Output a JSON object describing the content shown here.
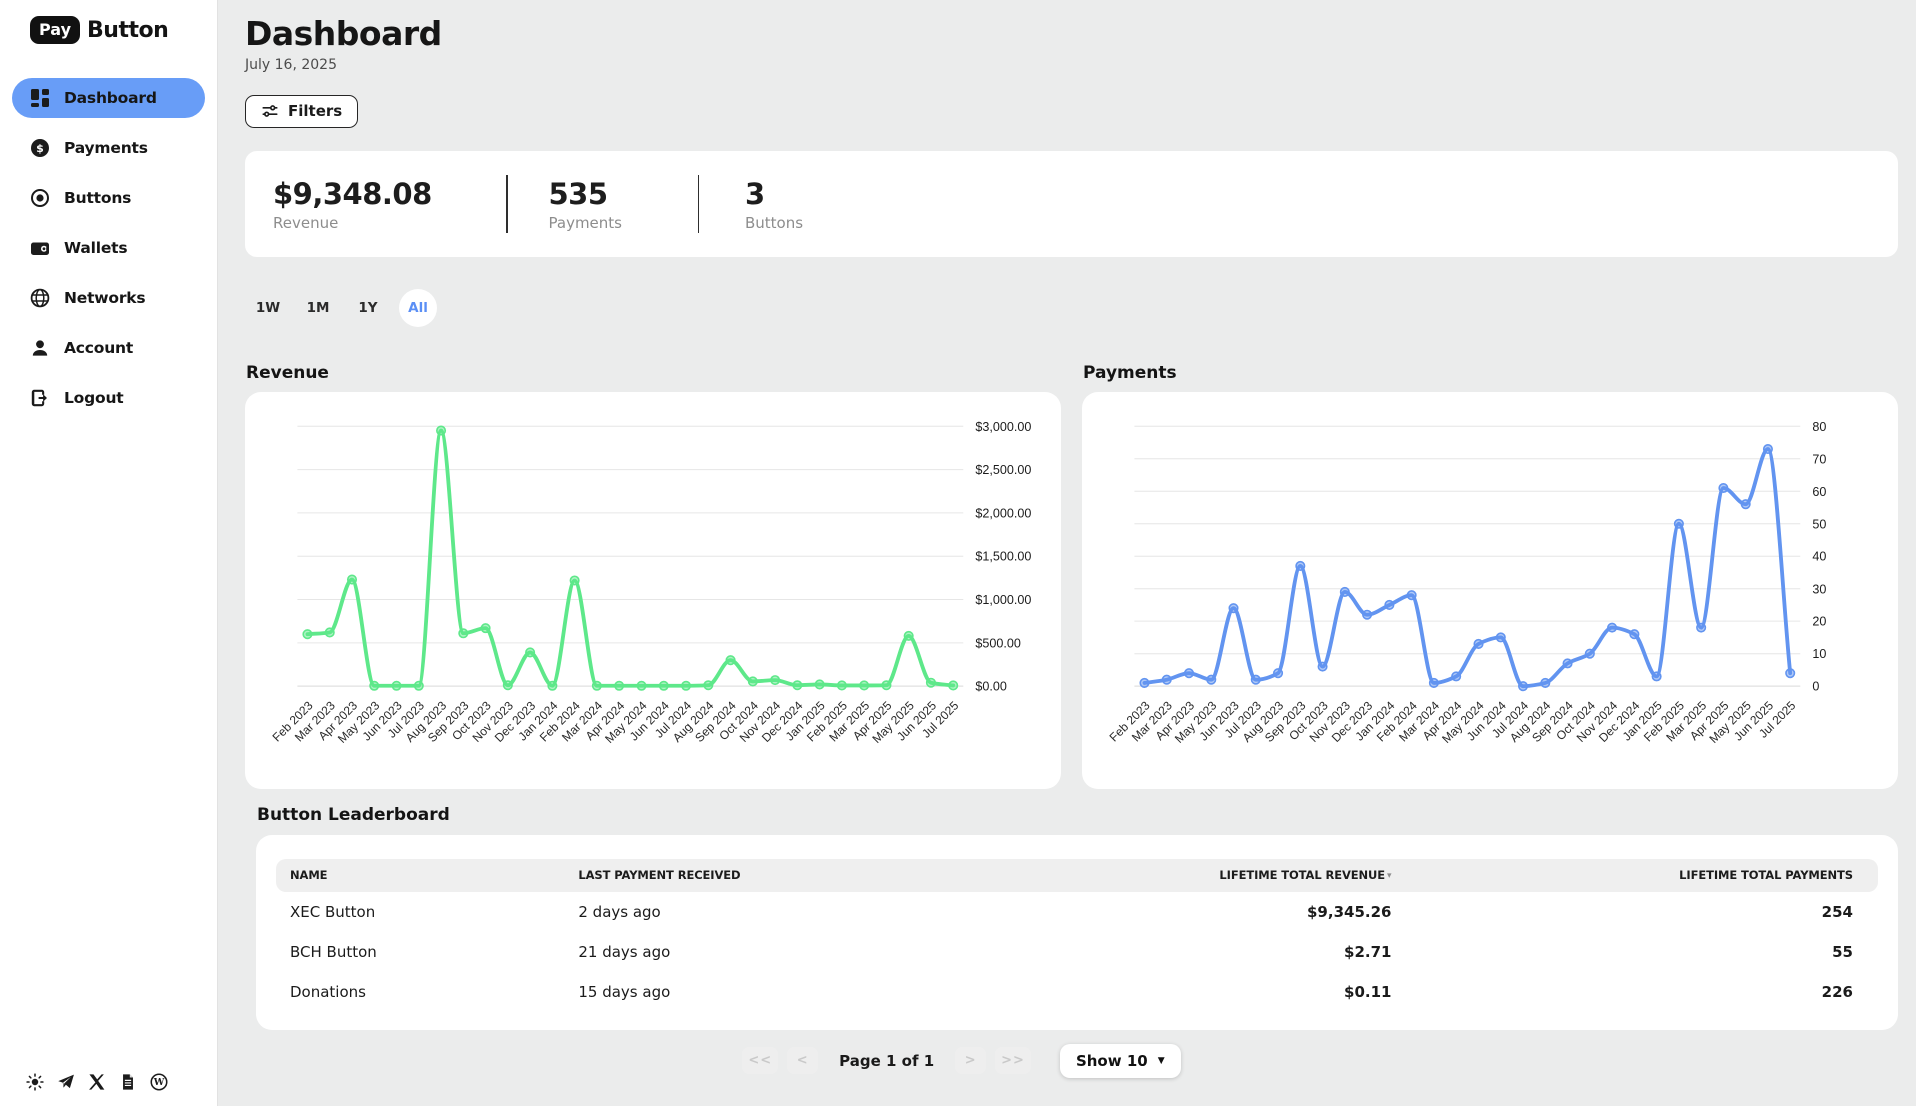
{
  "brand": {
    "pay": "Pay",
    "button": "Button"
  },
  "sidebar": {
    "items": [
      {
        "label": "Dashboard",
        "icon": "grid-icon",
        "active": true
      },
      {
        "label": "Payments",
        "icon": "dollar-icon",
        "active": false
      },
      {
        "label": "Buttons",
        "icon": "target-icon",
        "active": false
      },
      {
        "label": "Wallets",
        "icon": "wallet-icon",
        "active": false
      },
      {
        "label": "Networks",
        "icon": "globe-icon",
        "active": false
      },
      {
        "label": "Account",
        "icon": "person-icon",
        "active": false
      },
      {
        "label": "Logout",
        "icon": "logout-icon",
        "active": false
      }
    ],
    "footer_icons": [
      "theme-sun-icon",
      "telegram-icon",
      "x-icon",
      "document-icon",
      "wordpress-icon"
    ]
  },
  "header": {
    "title": "Dashboard",
    "date": "July 16, 2025",
    "filters_label": "Filters"
  },
  "stats": [
    {
      "value": "$9,348.08",
      "label": "Revenue"
    },
    {
      "value": "535",
      "label": "Payments"
    },
    {
      "value": "3",
      "label": "Buttons"
    }
  ],
  "range_buttons": [
    {
      "label": "1W",
      "active": false
    },
    {
      "label": "1M",
      "active": false
    },
    {
      "label": "1Y",
      "active": false
    },
    {
      "label": "All",
      "active": true
    }
  ],
  "chart_data": [
    {
      "type": "line",
      "title": "Revenue",
      "categories": [
        "Feb 2023",
        "Mar 2023",
        "Apr 2023",
        "May 2023",
        "Jun 2023",
        "Jul 2023",
        "Aug 2023",
        "Sep 2023",
        "Oct 2023",
        "Nov 2023",
        "Dec 2023",
        "Jan 2024",
        "Feb 2024",
        "Mar 2024",
        "Apr 2024",
        "May 2024",
        "Jun 2024",
        "Jul 2024",
        "Aug 2024",
        "Sep 2024",
        "Oct 2024",
        "Nov 2024",
        "Dec 2024",
        "Jan 2025",
        "Feb 2025",
        "Mar 2025",
        "Apr 2025",
        "May 2025",
        "Jun 2025",
        "Jul 2025"
      ],
      "values": [
        600,
        620,
        1230,
        5,
        5,
        5,
        2950,
        610,
        670,
        10,
        390,
        5,
        1220,
        5,
        5,
        5,
        5,
        5,
        10,
        300,
        55,
        70,
        10,
        20,
        8,
        8,
        10,
        580,
        40,
        8
      ],
      "ylim": [
        0,
        3000
      ],
      "ytick_step": 500,
      "ytick_format": "usd",
      "ytick_labels": [
        "$0.00",
        "$500.00",
        "$1,000.00",
        "$1,500.00",
        "$2,000.00",
        "$2,500.00",
        "$3,000.00"
      ],
      "color": "#5ee88a",
      "grid": true,
      "yaxis_position": "right",
      "legend_position": "none"
    },
    {
      "type": "line",
      "title": "Payments",
      "categories": [
        "Feb 2023",
        "Mar 2023",
        "Apr 2023",
        "May 2023",
        "Jun 2023",
        "Jul 2023",
        "Aug 2023",
        "Sep 2023",
        "Oct 2023",
        "Nov 2023",
        "Dec 2023",
        "Jan 2024",
        "Feb 2024",
        "Mar 2024",
        "Apr 2024",
        "May 2024",
        "Jun 2024",
        "Jul 2024",
        "Aug 2024",
        "Sep 2024",
        "Oct 2024",
        "Nov 2024",
        "Dec 2024",
        "Jan 2025",
        "Feb 2025",
        "Mar 2025",
        "Apr 2025",
        "May 2025",
        "Jun 2025",
        "Jul 2025"
      ],
      "values": [
        1,
        2,
        4,
        2,
        24,
        2,
        4,
        37,
        6,
        29,
        22,
        25,
        28,
        1,
        3,
        13,
        15,
        0,
        1,
        7,
        10,
        18,
        16,
        3,
        50,
        18,
        61,
        56,
        73,
        4
      ],
      "ylim": [
        0,
        80
      ],
      "ytick_step": 10,
      "ytick_format": "plain",
      "ytick_labels": [
        "0",
        "10",
        "20",
        "30",
        "40",
        "50",
        "60",
        "70",
        "80"
      ],
      "color": "#6294f0",
      "grid": true,
      "yaxis_position": "right",
      "legend_position": "none"
    }
  ],
  "leaderboard": {
    "title": "Button Leaderboard",
    "columns": {
      "name": "NAME",
      "last_payment": "LAST PAYMENT RECEIVED",
      "revenue": "LIFETIME TOTAL REVENUE",
      "payments": "LIFETIME TOTAL PAYMENTS"
    },
    "sort": {
      "column": "LIFETIME TOTAL REVENUE",
      "direction": "desc",
      "icon": "▾"
    },
    "rows": [
      {
        "name": "XEC Button",
        "last_payment": "2 days ago",
        "revenue": "$9,345.26",
        "payments": "254"
      },
      {
        "name": "BCH Button",
        "last_payment": "21 days ago",
        "revenue": "$2.71",
        "payments": "55"
      },
      {
        "name": "Donations",
        "last_payment": "15 days ago",
        "revenue": "$0.11",
        "payments": "226"
      }
    ]
  },
  "pagination": {
    "first": "<<",
    "prev": "<",
    "label": "Page 1 of 1",
    "next": ">",
    "last": ">>",
    "show_label": "Show 10",
    "caret": "▼"
  },
  "colors": {
    "background": "#ebecec",
    "sidebar_active": "#689df7",
    "range_active_text": "#5b8ff5",
    "chart_green": "#5ee88a",
    "chart_blue": "#6294f0"
  }
}
